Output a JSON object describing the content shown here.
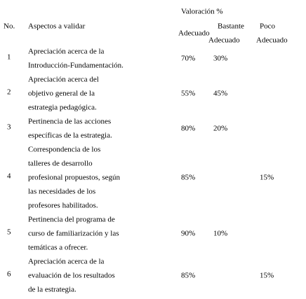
{
  "table": {
    "group_header": "Valoración %",
    "headers": {
      "no": "No.",
      "aspect": "Aspectos a validar",
      "adecuado": "Adecuado",
      "bastante": [
        "Bastante",
        "Adecuado"
      ],
      "poco": [
        "Poco",
        "Adecuado"
      ]
    },
    "rows": [
      {
        "no": "1",
        "aspect": [
          "Apreciación acerca de la",
          "Introducción-Fundamentación."
        ],
        "adecuado": "70%",
        "bastante": "30%"
      },
      {
        "no": "2",
        "aspect": [
          "Apreciación acerca del",
          "objetivo general de la",
          "estrategia pedagógica."
        ],
        "adecuado": "55%",
        "bastante": "45%"
      },
      {
        "no": "3",
        "aspect": [
          "Pertinencia de las acciones",
          "específicas de la estrategia."
        ],
        "adecuado": "80%",
        "bastante": "20%"
      },
      {
        "no": "4",
        "aspect": [
          "Correspondencia de los",
          "talleres de desarrollo",
          "profesional propuestos, según",
          "las necesidades de los",
          "profesores habilitados."
        ],
        "adecuado": "85%",
        "poco": "15%"
      },
      {
        "no": "5",
        "aspect": [
          "Pertinencia del programa de",
          "curso de familiarización y las",
          "temáticas a ofrecer."
        ],
        "adecuado": "90%",
        "bastante": "10%"
      },
      {
        "no": "6",
        "aspect": [
          "Apreciación acerca de la",
          "evaluación de los resultados",
          "de la estrategia."
        ],
        "adecuado": "85%",
        "poco": "15%"
      }
    ]
  }
}
